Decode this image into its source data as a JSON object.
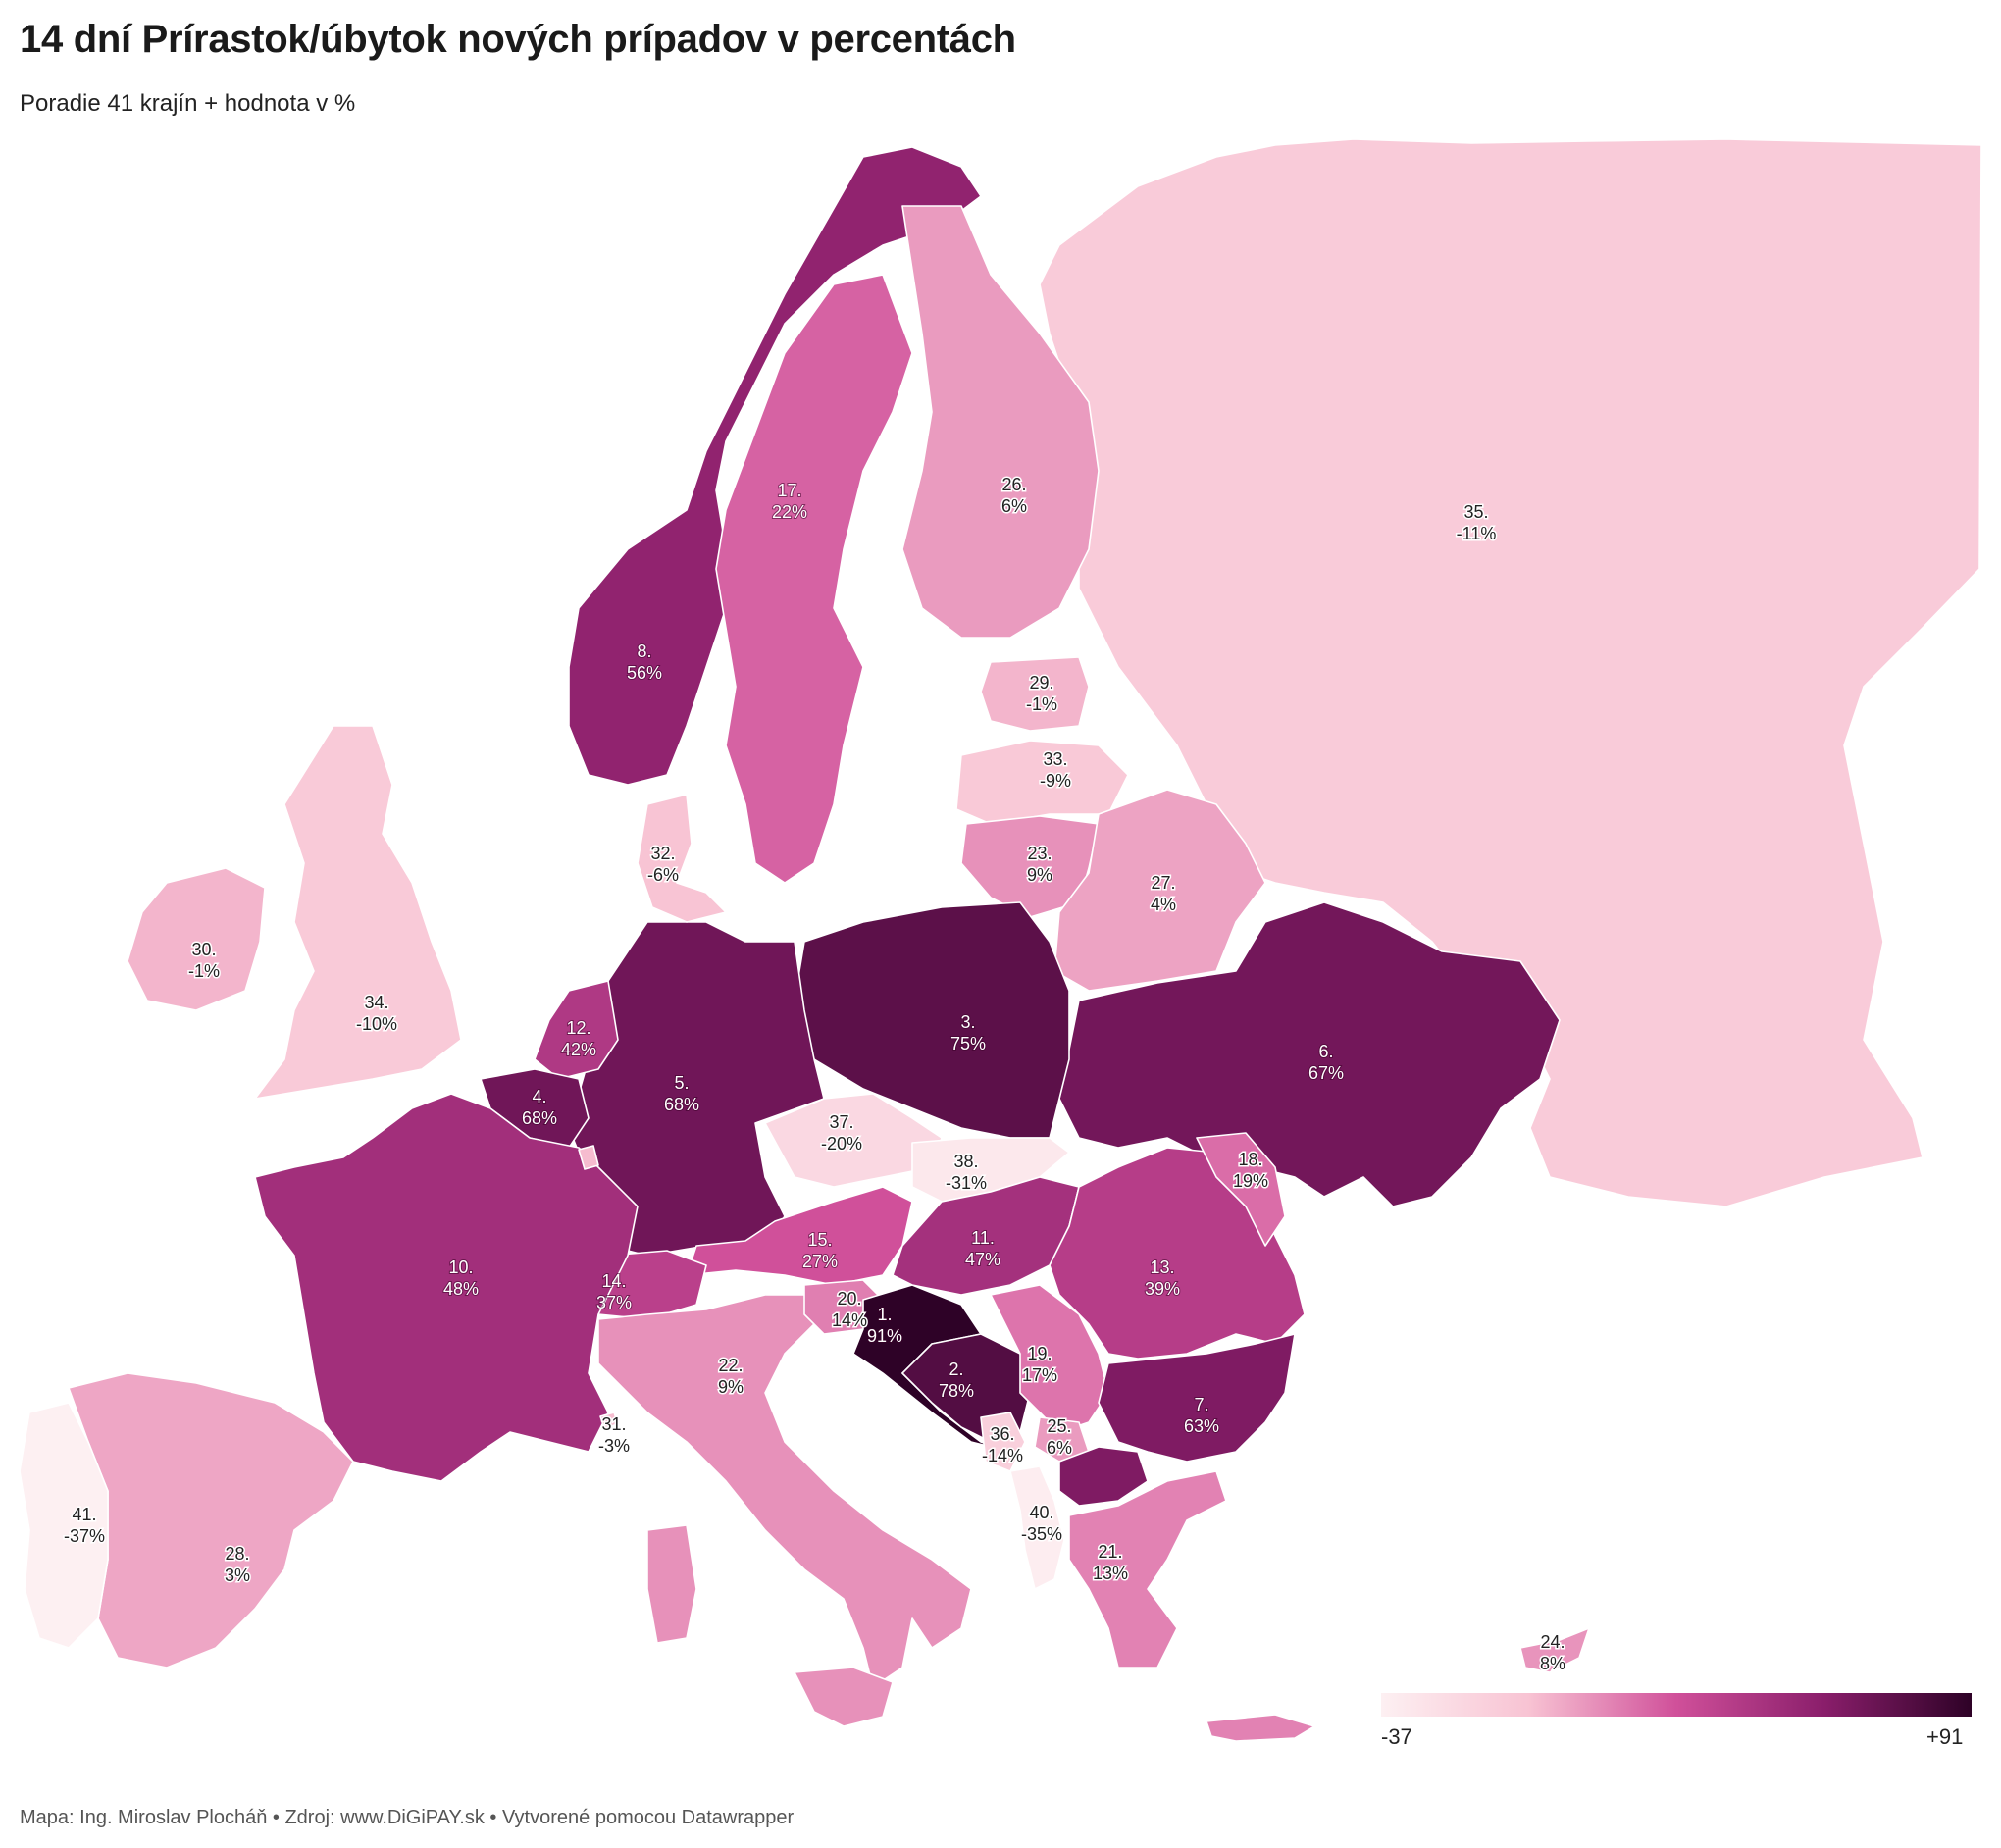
{
  "title": "14 dní Prírastok/úbytok nových prípadov v percentách",
  "subtitle": "Poradie 41 krajín + hodnota v %",
  "footer": "Mapa: Ing. Miroslav Plocháň • Zdroj: www.DiGiPAY.sk • Vytvorené pomocou Datawrapper",
  "legend": {
    "min_label": "-37",
    "max_label": "+91",
    "min": -37,
    "max": 91
  },
  "regions": [
    {
      "rank": "1.",
      "value": "91%",
      "v": 91
    },
    {
      "rank": "2.",
      "value": "78%",
      "v": 78
    },
    {
      "rank": "3.",
      "value": "75%",
      "v": 75
    },
    {
      "rank": "4.",
      "value": "68%",
      "v": 68
    },
    {
      "rank": "5.",
      "value": "68%",
      "v": 68
    },
    {
      "rank": "6.",
      "value": "67%",
      "v": 67
    },
    {
      "rank": "7.",
      "value": "63%",
      "v": 63
    },
    {
      "rank": "8.",
      "value": "56%",
      "v": 56
    },
    {
      "rank": "10.",
      "value": "48%",
      "v": 48
    },
    {
      "rank": "11.",
      "value": "47%",
      "v": 47
    },
    {
      "rank": "12.",
      "value": "42%",
      "v": 42
    },
    {
      "rank": "13.",
      "value": "39%",
      "v": 39
    },
    {
      "rank": "14.",
      "value": "37%",
      "v": 37
    },
    {
      "rank": "15.",
      "value": "27%",
      "v": 27
    },
    {
      "rank": "17.",
      "value": "22%",
      "v": 22
    },
    {
      "rank": "18.",
      "value": "19%",
      "v": 19
    },
    {
      "rank": "19.",
      "value": "17%",
      "v": 17
    },
    {
      "rank": "20.",
      "value": "14%",
      "v": 14
    },
    {
      "rank": "21.",
      "value": "13%",
      "v": 13
    },
    {
      "rank": "22.",
      "value": "9%",
      "v": 9
    },
    {
      "rank": "23.",
      "value": "9%",
      "v": 9
    },
    {
      "rank": "24.",
      "value": "8%",
      "v": 8
    },
    {
      "rank": "25.",
      "value": "6%",
      "v": 6
    },
    {
      "rank": "26.",
      "value": "6%",
      "v": 6
    },
    {
      "rank": "27.",
      "value": "4%",
      "v": 4
    },
    {
      "rank": "28.",
      "value": "3%",
      "v": 3
    },
    {
      "rank": "29.",
      "value": "-1%",
      "v": -1
    },
    {
      "rank": "30.",
      "value": "-1%",
      "v": -1
    },
    {
      "rank": "31.",
      "value": "-3%",
      "v": -3
    },
    {
      "rank": "32.",
      "value": "-6%",
      "v": -6
    },
    {
      "rank": "33.",
      "value": "-9%",
      "v": -9
    },
    {
      "rank": "34.",
      "value": "-10%",
      "v": -10
    },
    {
      "rank": "35.",
      "value": "-11%",
      "v": -11
    },
    {
      "rank": "36.",
      "value": "-14%",
      "v": -14
    },
    {
      "rank": "37.",
      "value": "-20%",
      "v": -20
    },
    {
      "rank": "38.",
      "value": "-31%",
      "v": -31
    },
    {
      "rank": "40.",
      "value": "-35%",
      "v": -35
    },
    {
      "rank": "41.",
      "value": "-37%",
      "v": -37
    }
  ]
}
